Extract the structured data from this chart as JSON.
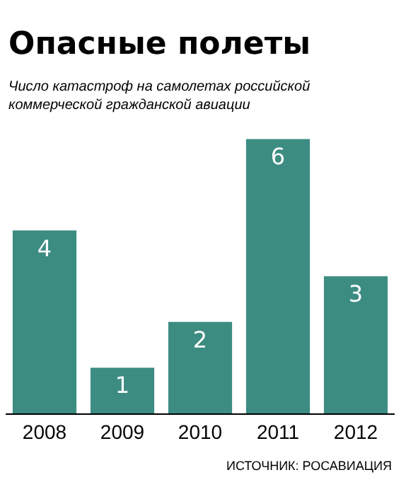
{
  "chart_data": {
    "type": "bar",
    "title": "Опасные полеты",
    "subtitle": "Число катастроф на самолетах российской коммерческой гражданской авиации",
    "categories": [
      "2008",
      "2009",
      "2010",
      "2011",
      "2012"
    ],
    "values": [
      4,
      1,
      2,
      6,
      3
    ],
    "color": "#3d8c82",
    "data_labels": true,
    "tick_labels": "x",
    "annotations": [
      "ИСТОЧНИК: РОСАВИАЦИЯ"
    ]
  }
}
